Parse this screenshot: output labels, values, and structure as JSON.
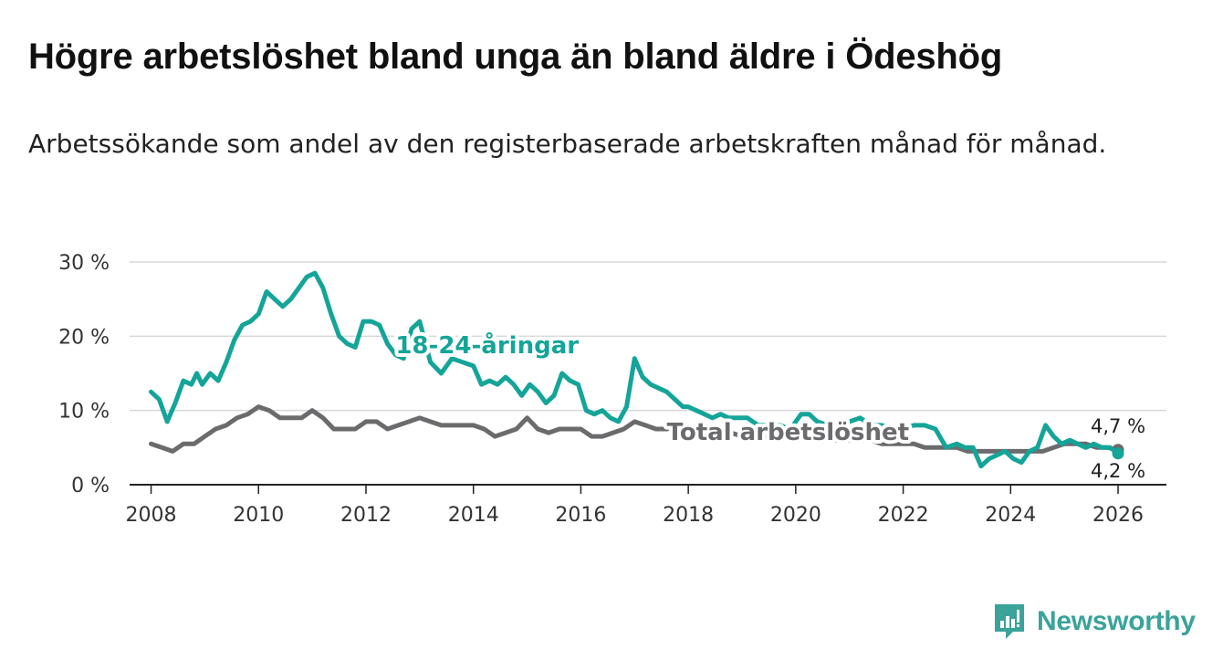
{
  "title": "Högre arbetslöshet bland unga än bland äldre i Ödeshög",
  "subtitle": "Arbetssökande som andel av den registerbaserade arbetskraften månad för månad.",
  "brand": {
    "name": "Newsworthy",
    "icon": "newsworthy-logo-icon"
  },
  "colors": {
    "youth": "#14a598",
    "total": "#6b6b6e",
    "grid": "#d8d8d8",
    "axis": "#222222"
  },
  "chart_data": {
    "type": "line",
    "title": "Högre arbetslöshet bland unga än bland äldre i Ödeshög",
    "xlabel": "",
    "ylabel": "",
    "xlim": [
      2007.6,
      2026.9
    ],
    "ylim": [
      0,
      30
    ],
    "x_ticks": [
      2008,
      2010,
      2012,
      2014,
      2016,
      2018,
      2020,
      2022,
      2024,
      2026
    ],
    "x_tick_labels": [
      "2008",
      "2010",
      "2012",
      "2014",
      "2016",
      "2018",
      "2020",
      "2022",
      "2024",
      "2026"
    ],
    "y_ticks": [
      0,
      10,
      20,
      30
    ],
    "y_tick_labels": [
      "0 %",
      "10 %",
      "20 %",
      "30 %"
    ],
    "grid": true,
    "series": [
      {
        "name": "18-24-åringar",
        "label": "18-24-åringar",
        "color": "#14a598",
        "x": [
          2008.0,
          2008.15,
          2008.3,
          2008.45,
          2008.6,
          2008.75,
          2008.85,
          2008.95,
          2009.1,
          2009.25,
          2009.4,
          2009.55,
          2009.7,
          2009.85,
          2010.0,
          2010.15,
          2010.3,
          2010.45,
          2010.6,
          2010.75,
          2010.9,
          2011.05,
          2011.2,
          2011.35,
          2011.5,
          2011.65,
          2011.8,
          2011.95,
          2012.1,
          2012.25,
          2012.4,
          2012.55,
          2012.7,
          2012.85,
          2013.0,
          2013.2,
          2013.4,
          2013.6,
          2013.8,
          2014.0,
          2014.15,
          2014.3,
          2014.45,
          2014.6,
          2014.75,
          2014.9,
          2015.05,
          2015.2,
          2015.35,
          2015.5,
          2015.65,
          2015.8,
          2015.95,
          2016.1,
          2016.25,
          2016.4,
          2016.55,
          2016.7,
          2016.85,
          2017.0,
          2017.15,
          2017.3,
          2017.45,
          2017.6,
          2017.75,
          2017.9,
          2018.0,
          2018.15,
          2018.3,
          2018.45,
          2018.6,
          2018.75,
          2018.9,
          2019.1,
          2019.3,
          2019.5,
          2019.7,
          2019.9,
          2020.1,
          2020.25,
          2020.4,
          2020.6,
          2020.8,
          2021.0,
          2021.2,
          2021.4,
          2021.6,
          2021.8,
          2022.0,
          2022.2,
          2022.4,
          2022.6,
          2022.8,
          2023.0,
          2023.15,
          2023.3,
          2023.45,
          2023.6,
          2023.75,
          2023.9,
          2024.05,
          2024.2,
          2024.35,
          2024.5,
          2024.65,
          2024.8,
          2024.95,
          2025.1,
          2025.25,
          2025.4,
          2025.55,
          2025.7,
          2025.85,
          2026.0
        ],
        "values": [
          12.5,
          11.5,
          8.5,
          11.0,
          14.0,
          13.5,
          15.0,
          13.5,
          15.0,
          14.0,
          16.5,
          19.5,
          21.5,
          22.0,
          23.0,
          26.0,
          25.0,
          24.0,
          25.0,
          26.5,
          28.0,
          28.5,
          26.5,
          23.0,
          20.0,
          19.0,
          18.5,
          22.0,
          22.0,
          21.5,
          19.0,
          17.5,
          17.0,
          21.0,
          22.0,
          16.5,
          15.0,
          17.0,
          16.5,
          16.0,
          13.5,
          14.0,
          13.5,
          14.5,
          13.5,
          12.0,
          13.5,
          12.5,
          11.0,
          12.0,
          15.0,
          14.0,
          13.5,
          10.0,
          9.5,
          10.0,
          9.0,
          8.5,
          10.5,
          17.0,
          14.5,
          13.5,
          13.0,
          12.5,
          11.5,
          10.5,
          10.5,
          10.0,
          9.5,
          9.0,
          9.5,
          9.0,
          9.0,
          9.0,
          8.0,
          8.0,
          8.0,
          7.5,
          9.5,
          9.5,
          8.5,
          8.0,
          8.5,
          8.5,
          9.0,
          8.0,
          8.0,
          7.5,
          7.5,
          8.0,
          8.0,
          7.5,
          5.0,
          5.5,
          5.0,
          5.0,
          2.5,
          3.5,
          4.0,
          4.5,
          3.5,
          3.0,
          4.5,
          5.0,
          8.0,
          6.5,
          5.5,
          6.0,
          5.5,
          5.0,
          5.5,
          5.0,
          5.0,
          4.2
        ]
      },
      {
        "name": "Total arbetslöshet",
        "label": "Total arbetslöshet",
        "color": "#6b6b6e",
        "x": [
          2008.0,
          2008.2,
          2008.4,
          2008.6,
          2008.8,
          2009.0,
          2009.2,
          2009.4,
          2009.6,
          2009.8,
          2010.0,
          2010.2,
          2010.4,
          2010.6,
          2010.8,
          2011.0,
          2011.2,
          2011.4,
          2011.6,
          2011.8,
          2012.0,
          2012.2,
          2012.4,
          2012.6,
          2012.8,
          2013.0,
          2013.2,
          2013.4,
          2013.6,
          2013.8,
          2014.0,
          2014.2,
          2014.4,
          2014.6,
          2014.8,
          2015.0,
          2015.2,
          2015.4,
          2015.6,
          2015.8,
          2016.0,
          2016.2,
          2016.4,
          2016.6,
          2016.8,
          2017.0,
          2017.2,
          2017.4,
          2017.6,
          2017.8,
          2018.0,
          2018.2,
          2018.4,
          2018.6,
          2018.8,
          2019.0,
          2019.2,
          2019.4,
          2019.6,
          2019.8,
          2020.0,
          2020.2,
          2020.4,
          2020.6,
          2020.8,
          2021.0,
          2021.2,
          2021.4,
          2021.6,
          2021.8,
          2022.0,
          2022.2,
          2022.4,
          2022.6,
          2022.8,
          2023.0,
          2023.2,
          2023.4,
          2023.6,
          2023.8,
          2024.0,
          2024.2,
          2024.4,
          2024.6,
          2024.8,
          2025.0,
          2025.2,
          2025.4,
          2025.6,
          2025.8,
          2026.0
        ],
        "values": [
          5.5,
          5.0,
          4.5,
          5.5,
          5.5,
          6.5,
          7.5,
          8.0,
          9.0,
          9.5,
          10.5,
          10.0,
          9.0,
          9.0,
          9.0,
          10.0,
          9.0,
          7.5,
          7.5,
          7.5,
          8.5,
          8.5,
          7.5,
          8.0,
          8.5,
          9.0,
          8.5,
          8.0,
          8.0,
          8.0,
          8.0,
          7.5,
          6.5,
          7.0,
          7.5,
          9.0,
          7.5,
          7.0,
          7.5,
          7.5,
          7.5,
          6.5,
          6.5,
          7.0,
          7.5,
          8.5,
          8.0,
          7.5,
          7.5,
          8.0,
          7.5,
          7.0,
          7.0,
          7.0,
          7.0,
          6.5,
          6.5,
          6.5,
          6.5,
          6.5,
          6.5,
          6.0,
          6.0,
          6.0,
          6.0,
          6.0,
          6.0,
          6.0,
          5.5,
          5.5,
          5.5,
          5.5,
          5.0,
          5.0,
          5.0,
          5.0,
          4.5,
          4.5,
          4.5,
          4.5,
          4.5,
          4.5,
          4.5,
          4.5,
          5.0,
          5.5,
          5.5,
          5.5,
          5.0,
          5.0,
          4.7
        ]
      }
    ],
    "annotations": [
      {
        "text": "18-24-åringar",
        "series": "18-24-åringar"
      },
      {
        "text": "Total arbetslöshet",
        "series": "Total arbetslöshet"
      },
      {
        "text": "4,7 %",
        "series": "Total arbetslöshet",
        "x": 2026.0,
        "y": 4.7
      },
      {
        "text": "4,2 %",
        "series": "18-24-åringar",
        "x": 2026.0,
        "y": 4.2
      }
    ]
  }
}
